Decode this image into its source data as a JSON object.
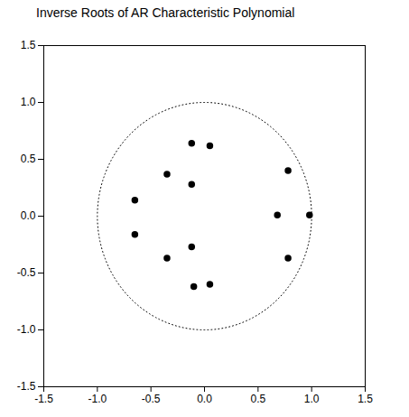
{
  "chart_data": {
    "type": "scatter",
    "title": "Inverse Roots of AR Characteristic Polynomial",
    "x": [
      -0.12,
      0.05,
      -0.35,
      -0.12,
      -0.65,
      -0.65,
      -0.12,
      -0.35,
      -0.1,
      0.05,
      0.78,
      0.78,
      0.68,
      0.98
    ],
    "values": [
      0.64,
      0.62,
      0.37,
      0.28,
      0.14,
      -0.16,
      -0.27,
      -0.37,
      -0.62,
      -0.6,
      0.4,
      -0.37,
      0.01,
      0.01
    ],
    "color": "#000000",
    "marker": "circle",
    "xlim": [
      -1.5,
      1.5
    ],
    "xticks": [
      -1.5,
      {
        "value": -1,
        "label": "-1.0"
      },
      -0.5,
      {
        "value": 0,
        "label": "0.0"
      },
      0.5,
      {
        "value": 1,
        "label": "1.0"
      },
      1.5
    ],
    "ylim": [
      -1.5,
      1.5
    ],
    "yticks": [
      -1.5,
      {
        "value": -1,
        "label": "-1.0"
      },
      -0.5,
      {
        "value": 0,
        "label": "0.0"
      },
      0.5,
      {
        "value": 1,
        "label": "1.0"
      },
      1.5
    ],
    "grid": false
  }
}
